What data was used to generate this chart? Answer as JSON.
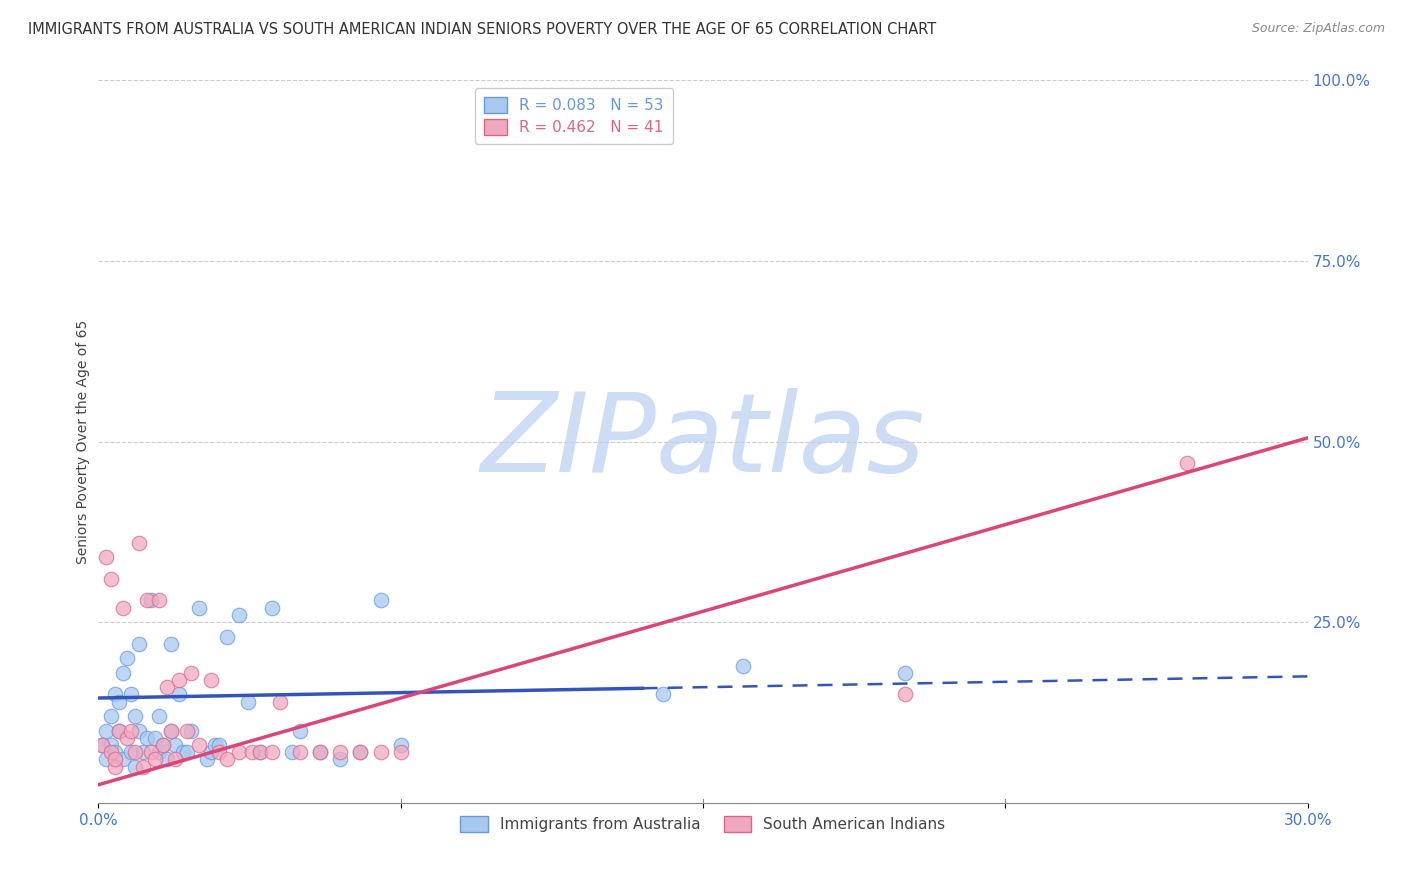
{
  "title": "IMMIGRANTS FROM AUSTRALIA VS SOUTH AMERICAN INDIAN SENIORS POVERTY OVER THE AGE OF 65 CORRELATION CHART",
  "source": "Source: ZipAtlas.com",
  "ylabel": "Seniors Poverty Over the Age of 65",
  "xlim": [
    0.0,
    0.3
  ],
  "ylim": [
    0.0,
    1.0
  ],
  "ytick_vals": [
    0.25,
    0.5,
    0.75,
    1.0
  ],
  "ytick_labels": [
    "25.0%",
    "50.0%",
    "75.0%",
    "100.0%"
  ],
  "grid_color": "#cccccc",
  "background": "#ffffff",
  "watermark": "ZIPatlas",
  "watermark_color": "#ccddf5",
  "series": [
    {
      "name": "Immigrants from Australia",
      "R": 0.083,
      "N": 53,
      "color": "#a8c8f0",
      "edge_color": "#6699dd",
      "x": [
        0.001,
        0.002,
        0.002,
        0.003,
        0.003,
        0.004,
        0.004,
        0.005,
        0.005,
        0.006,
        0.006,
        0.007,
        0.008,
        0.008,
        0.009,
        0.009,
        0.01,
        0.01,
        0.011,
        0.012,
        0.013,
        0.014,
        0.015,
        0.015,
        0.016,
        0.017,
        0.018,
        0.018,
        0.019,
        0.02,
        0.021,
        0.022,
        0.023,
        0.025,
        0.027,
        0.028,
        0.029,
        0.03,
        0.032,
        0.035,
        0.037,
        0.04,
        0.043,
        0.048,
        0.05,
        0.055,
        0.06,
        0.065,
        0.07,
        0.075,
        0.14,
        0.16,
        0.2
      ],
      "y": [
        0.08,
        0.1,
        0.06,
        0.12,
        0.08,
        0.15,
        0.07,
        0.1,
        0.14,
        0.18,
        0.06,
        0.2,
        0.15,
        0.07,
        0.12,
        0.05,
        0.1,
        0.22,
        0.07,
        0.09,
        0.28,
        0.09,
        0.12,
        0.07,
        0.08,
        0.06,
        0.1,
        0.22,
        0.08,
        0.15,
        0.07,
        0.07,
        0.1,
        0.27,
        0.06,
        0.07,
        0.08,
        0.08,
        0.23,
        0.26,
        0.14,
        0.07,
        0.27,
        0.07,
        0.1,
        0.07,
        0.06,
        0.07,
        0.28,
        0.08,
        0.15,
        0.19,
        0.18
      ],
      "trend_color": "#3355bb",
      "trend_x0": 0.0,
      "trend_y0": 0.145,
      "trend_x1": 0.3,
      "trend_y1": 0.175,
      "trend_solid_end": 0.135,
      "trend_dashed_start": 0.135
    },
    {
      "name": "South American Indians",
      "R": 0.462,
      "N": 41,
      "color": "#f0a8c0",
      "edge_color": "#dd6688",
      "x": [
        0.001,
        0.002,
        0.003,
        0.003,
        0.004,
        0.004,
        0.005,
        0.006,
        0.007,
        0.008,
        0.009,
        0.01,
        0.011,
        0.012,
        0.013,
        0.014,
        0.015,
        0.016,
        0.017,
        0.018,
        0.019,
        0.02,
        0.022,
        0.023,
        0.025,
        0.028,
        0.03,
        0.032,
        0.035,
        0.038,
        0.04,
        0.043,
        0.045,
        0.05,
        0.055,
        0.06,
        0.065,
        0.07,
        0.075,
        0.2,
        0.27
      ],
      "y": [
        0.08,
        0.34,
        0.07,
        0.31,
        0.05,
        0.06,
        0.1,
        0.27,
        0.09,
        0.1,
        0.07,
        0.36,
        0.05,
        0.28,
        0.07,
        0.06,
        0.28,
        0.08,
        0.16,
        0.1,
        0.06,
        0.17,
        0.1,
        0.18,
        0.08,
        0.17,
        0.07,
        0.06,
        0.07,
        0.07,
        0.07,
        0.07,
        0.14,
        0.07,
        0.07,
        0.07,
        0.07,
        0.07,
        0.07,
        0.15,
        0.47
      ],
      "trend_color": "#dd4477",
      "trend_x0": 0.0,
      "trend_y0": 0.025,
      "trend_x1": 0.3,
      "trend_y1": 0.505
    }
  ],
  "title_fontsize": 10.5,
  "axis_label_fontsize": 10,
  "tick_fontsize": 11,
  "legend_fontsize": 11,
  "marker_size": 110
}
